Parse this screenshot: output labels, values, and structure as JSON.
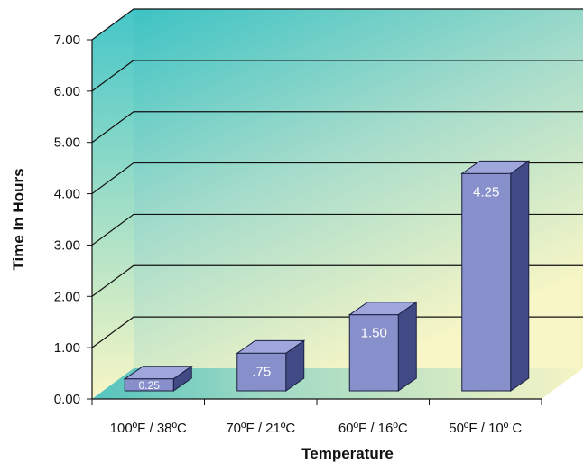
{
  "chart_data": {
    "type": "bar",
    "categories": [
      "100ºF / 38ºC",
      "70ºF / 21ºC",
      "60ºF / 16ºC",
      "50ºF / 10º C"
    ],
    "values": [
      0.25,
      0.75,
      1.5,
      4.25
    ],
    "data_labels": [
      "0.25",
      ".75",
      "1.50",
      "4.25"
    ],
    "title": "",
    "xlabel": "Temperature",
    "ylabel": "Time In Hours",
    "ylim": [
      0,
      7
    ],
    "yticks": [
      "0.00",
      "1.00",
      "2.00",
      "3.00",
      "4.00",
      "5.00",
      "6.00",
      "7.00"
    ],
    "grid": true,
    "style": "3d",
    "colors": {
      "bar_front": "#8790cb",
      "bar_top": "#9ea6dc",
      "bar_side": "#424a86",
      "bar_edge": "#1b1f40",
      "wall_top": "#3fc2c5",
      "wall_bottom": "#f8f6c8"
    }
  }
}
